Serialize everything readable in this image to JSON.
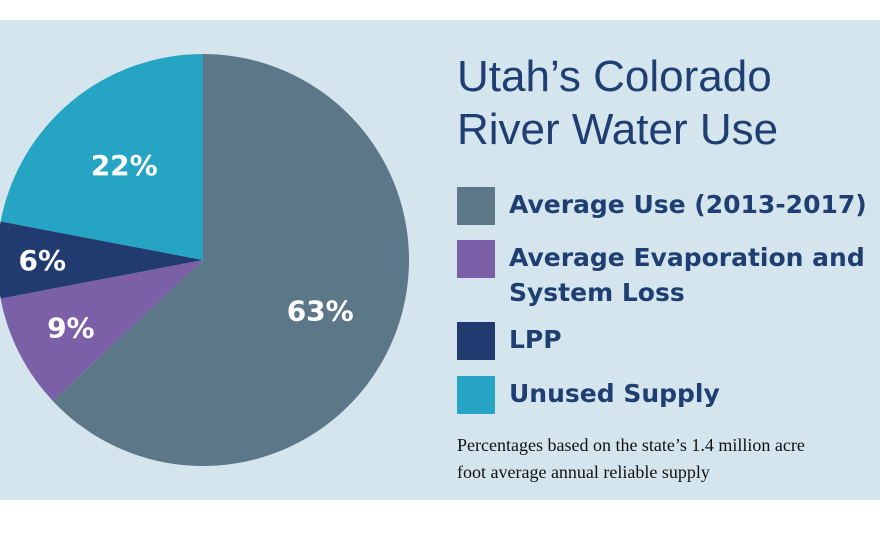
{
  "chart_data": {
    "type": "pie",
    "title": "Utah’s Colorado River Water Use",
    "title_lines": [
      "Utah’s Colorado",
      "River Water Use"
    ],
    "slices": [
      {
        "label": "Average Use (2013-2017)",
        "value": 63,
        "display": "63%",
        "color": "#5c7888"
      },
      {
        "label": "Average Evaporation and System Loss",
        "label_lines": [
          "Average Evaporation and",
          "System Loss"
        ],
        "value": 9,
        "display": "9%",
        "color": "#7b60a8"
      },
      {
        "label": "LPP",
        "value": 6,
        "display": "6%",
        "color": "#213b70"
      },
      {
        "label": "Unused Supply",
        "value": 22,
        "display": "22%",
        "color": "#25a4c4"
      }
    ],
    "start": "top",
    "direction": "clockwise",
    "legend_position": "right",
    "note_lines": [
      "Percentages based on the state’s 1.4 million acre",
      "foot average annual reliable supply"
    ]
  }
}
